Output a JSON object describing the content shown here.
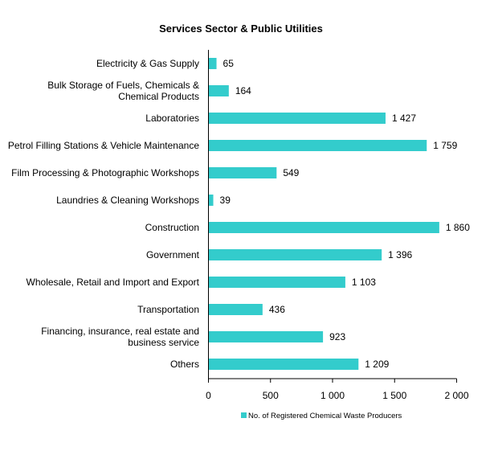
{
  "chart_data": {
    "type": "bar",
    "orientation": "horizontal",
    "title": "Services Sector & Public Utilities",
    "xlabel": "",
    "ylabel": "",
    "xlim": [
      0,
      2000
    ],
    "xticks": [
      0,
      500,
      1000,
      1500,
      2000
    ],
    "xtick_labels": [
      "0",
      "500",
      "1 000",
      "1 500",
      "2 000"
    ],
    "grid": false,
    "legend_position": "bottom",
    "categories": [
      "Electricity & Gas Supply",
      "Bulk Storage of Fuels, Chemicals & Chemical Products",
      "Laboratories",
      "Petrol Filling Stations & Vehicle Maintenance",
      "Film Processing & Photographic Workshops",
      "Laundries & Cleaning Workshops",
      "Construction",
      "Government",
      "Wholesale, Retail and Import and Export",
      "Transportation",
      "Financing, insurance, real estate and business service",
      "Others"
    ],
    "category_lines": [
      [
        "Electricity & Gas Supply"
      ],
      [
        "Bulk Storage of Fuels, Chemicals &",
        "Chemical Products"
      ],
      [
        "Laboratories"
      ],
      [
        "Petrol Filling Stations & Vehicle Maintenance"
      ],
      [
        "Film Processing & Photographic Workshops"
      ],
      [
        "Laundries & Cleaning Workshops"
      ],
      [
        "Construction"
      ],
      [
        "Government"
      ],
      [
        "Wholesale, Retail and Import and Export"
      ],
      [
        "Transportation"
      ],
      [
        "Financing, insurance, real estate and",
        "business service"
      ],
      [
        "Others"
      ]
    ],
    "series": [
      {
        "name": "No. of Registered Chemical Waste Producers",
        "color": "#33CCCC",
        "values": [
          65,
          164,
          1427,
          1759,
          549,
          39,
          1860,
          1396,
          1103,
          436,
          923,
          1209
        ],
        "data_labels": [
          "65",
          "164",
          "1 427",
          "1 759",
          "549",
          "39",
          "1 860",
          "1 396",
          "1 103",
          "436",
          "923",
          "1 209"
        ]
      }
    ]
  }
}
